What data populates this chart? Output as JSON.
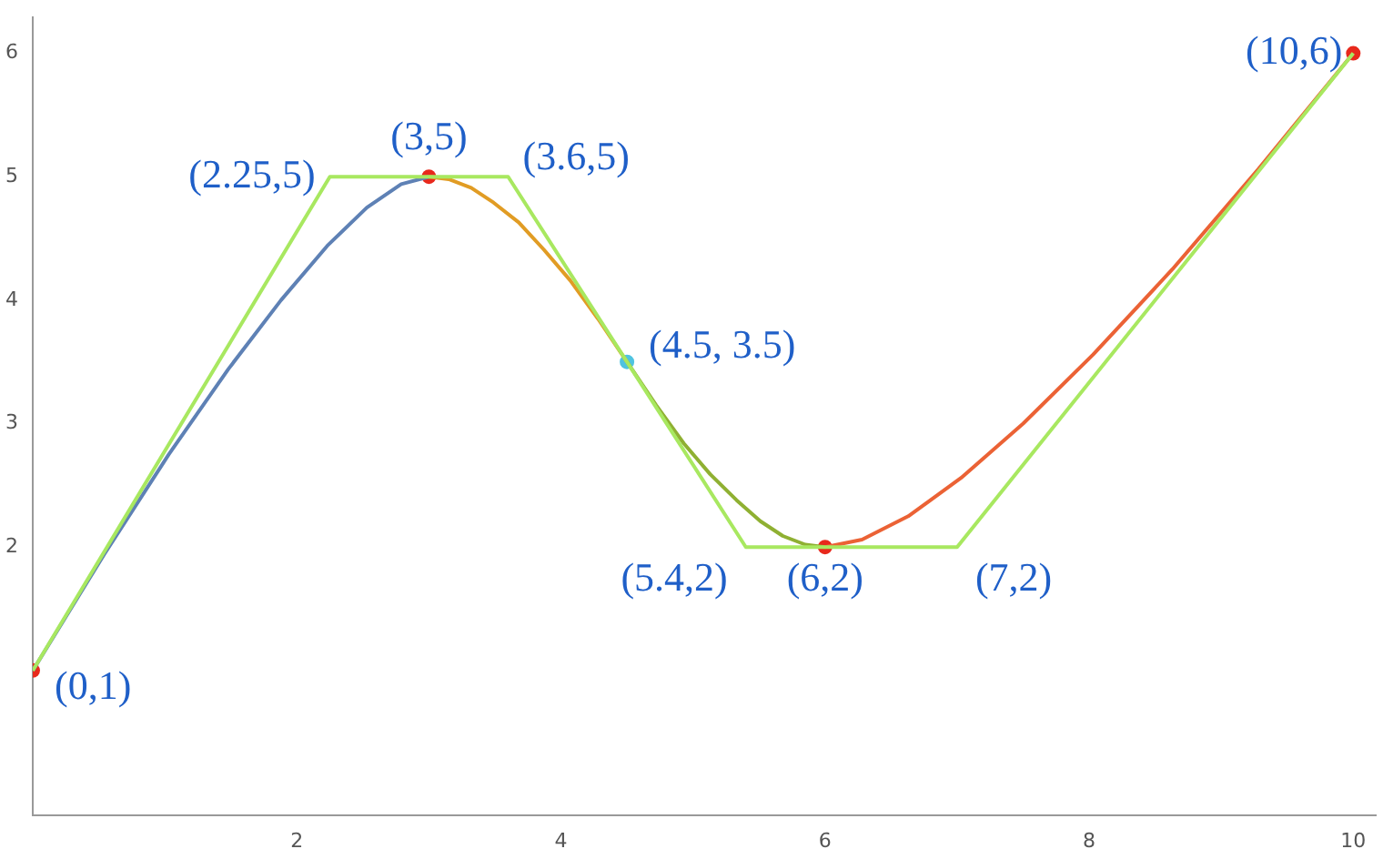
{
  "chart_data": {
    "type": "line",
    "xlim": [
      0,
      10.17
    ],
    "ylim": [
      -0.17,
      6.29
    ],
    "xticks": [
      2,
      4,
      6,
      8,
      10
    ],
    "yticks": [
      2,
      3,
      4,
      5,
      6
    ],
    "grid": false,
    "legend": false,
    "line_style": "solid",
    "series": [
      {
        "type": "line",
        "color": "#a8e860",
        "x": [
          0,
          2.25,
          3.6,
          5.4,
          7,
          10
        ],
        "values": [
          1,
          5,
          5,
          2,
          2,
          6
        ]
      },
      {
        "type": "line",
        "color": "#5e81b5",
        "x": [
          0,
          0.54,
          1.03,
          1.48,
          1.88,
          2.23,
          2.53,
          2.79,
          3
        ],
        "values": [
          1,
          1.94,
          2.75,
          3.44,
          4.0,
          4.44,
          4.75,
          4.94,
          5
        ]
      },
      {
        "type": "line",
        "color": "#e19c24",
        "x": [
          3,
          3.15,
          3.32,
          3.49,
          3.68,
          3.87,
          4.07,
          4.28,
          4.5
        ],
        "values": [
          5,
          4.98,
          4.91,
          4.79,
          4.63,
          4.41,
          4.16,
          3.85,
          3.5
        ]
      },
      {
        "type": "line",
        "color": "#8fb032",
        "x": [
          4.5,
          4.72,
          4.93,
          5.13,
          5.33,
          5.51,
          5.68,
          5.85,
          6
        ],
        "values": [
          3.5,
          3.15,
          2.84,
          2.59,
          2.38,
          2.21,
          2.09,
          2.02,
          2
        ]
      },
      {
        "type": "line",
        "color": "#eb6235",
        "x": [
          6,
          6.28,
          6.63,
          7.03,
          7.5,
          8.03,
          8.63,
          9.28,
          10
        ],
        "values": [
          2,
          2.06,
          2.25,
          2.56,
          3,
          3.56,
          4.25,
          5.06,
          6
        ]
      },
      {
        "type": "scatter",
        "marker": "circle",
        "x": [
          0,
          3,
          4.5,
          6,
          10
        ],
        "values": [
          1,
          5,
          3.5,
          2,
          6
        ],
        "colors": [
          "#e8291c",
          "#e8291c",
          "#4fc3e0",
          "#e8291c",
          "#e8291c"
        ]
      }
    ],
    "annotations": [
      {
        "text": "(0,1)",
        "x": 0,
        "y": 1
      },
      {
        "text": "(2.25,5)",
        "x": 2.25,
        "y": 5
      },
      {
        "text": "(3,5)",
        "x": 3,
        "y": 5
      },
      {
        "text": "(3.6,5)",
        "x": 3.6,
        "y": 5
      },
      {
        "text": "(4.5, 3.5)",
        "x": 4.5,
        "y": 3.5
      },
      {
        "text": "(5.4,2)",
        "x": 5.4,
        "y": 2
      },
      {
        "text": "(6,2)",
        "x": 6,
        "y": 2
      },
      {
        "text": "(7,2)",
        "x": 7,
        "y": 2
      },
      {
        "text": "(10,6)",
        "x": 10,
        "y": 6
      }
    ]
  }
}
